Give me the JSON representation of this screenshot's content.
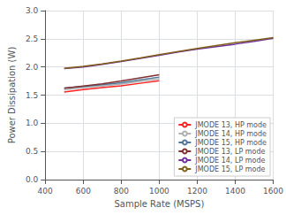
{
  "chart_data": {
    "type": "line",
    "xlabel": "Sample Rate (MSPS)",
    "ylabel": "Power Dissipation (W)",
    "xlim": [
      400,
      1600
    ],
    "ylim": [
      0,
      3
    ],
    "xticks": [
      400,
      600,
      800,
      1000,
      1200,
      1400,
      1600
    ],
    "yticks": [
      {
        "value": 0,
        "label": "0.0"
      },
      {
        "value": 0.5,
        "label": "0.5"
      },
      {
        "value": 1,
        "label": "1.0"
      },
      {
        "value": 1.5,
        "label": "1.5"
      },
      {
        "value": 2,
        "label": "2.0"
      },
      {
        "value": 2.5,
        "label": "2.5"
      },
      {
        "value": 3,
        "label": "3.0"
      }
    ],
    "grid": true,
    "legend": "lower right",
    "series": [
      {
        "name": "JMODE 13, HP mode",
        "color": "#ff2020",
        "x": [
          500,
          600,
          700,
          800,
          900,
          1000
        ],
        "values": [
          1.555,
          1.6,
          1.635,
          1.665,
          1.71,
          1.755
        ]
      },
      {
        "name": "JMODE 14, HP mode",
        "color": "#b0b0b0",
        "x": [
          500,
          600,
          700,
          800,
          900,
          1000
        ],
        "values": [
          1.595,
          1.635,
          1.66,
          1.695,
          1.745,
          1.79
        ]
      },
      {
        "name": "JMODE 15, HP mode",
        "color": "#507898",
        "x": [
          500,
          600,
          700,
          800,
          900,
          1000
        ],
        "values": [
          1.625,
          1.655,
          1.685,
          1.72,
          1.77,
          1.82
        ]
      },
      {
        "name": "JMODE 13, LP mode",
        "color": "#803030",
        "x": [
          500,
          600,
          700,
          800,
          900,
          1000
        ],
        "values": [
          1.62,
          1.66,
          1.7,
          1.75,
          1.805,
          1.86
        ]
      },
      {
        "name": "JMODE 14, LP mode",
        "color": "#7030a0",
        "x": [
          500,
          600,
          700,
          800,
          900,
          1000,
          1100,
          1200,
          1300,
          1400,
          1500,
          1600
        ],
        "values": [
          1.97,
          2.0,
          2.045,
          2.095,
          2.15,
          2.205,
          2.265,
          2.315,
          2.36,
          2.405,
          2.455,
          2.51
        ]
      },
      {
        "name": "JMODE 15, LP mode",
        "color": "#806018",
        "x": [
          500,
          600,
          700,
          800,
          900,
          1000,
          1100,
          1200,
          1300,
          1400,
          1500,
          1600
        ],
        "values": [
          1.975,
          2.01,
          2.055,
          2.105,
          2.16,
          2.22,
          2.275,
          2.33,
          2.38,
          2.43,
          2.475,
          2.52
        ]
      }
    ]
  }
}
